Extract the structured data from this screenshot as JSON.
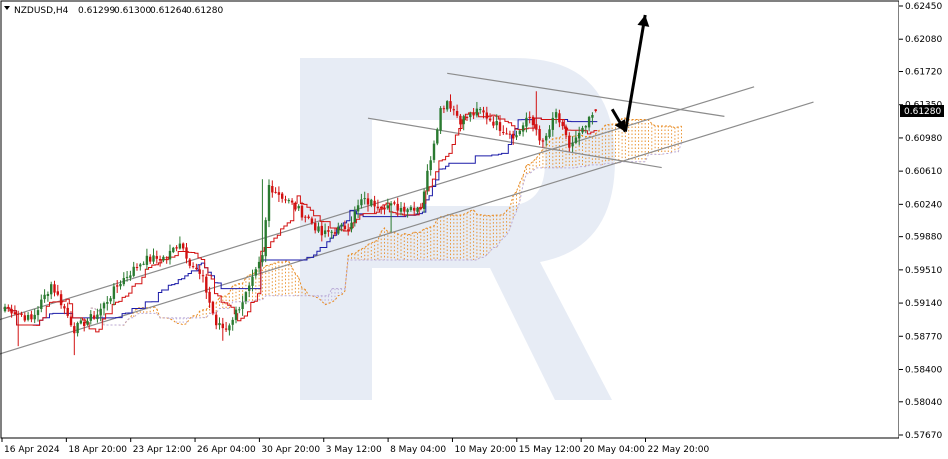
{
  "header": {
    "symbol": "NZDUSD,H4",
    "open": "0.61299",
    "high": "0.61300",
    "low": "0.61264",
    "close": "0.61280"
  },
  "colors": {
    "bull": "#2a7a30",
    "bear": "#d21010",
    "tenkan": "#d21010",
    "kijun": "#1a1aa8",
    "cloud_bull": "#e88a20",
    "cloud_bear": "#b9a9d6",
    "channel": "#8c8c8c",
    "arrow": "#000000",
    "watermark": "#dfe6f2",
    "price_tag_bg": "#000000"
  },
  "chart_data": {
    "type": "candlestick",
    "title": "",
    "ylim": [
      0.5767,
      0.6245
    ],
    "y_ticks": [
      "0.62450",
      "0.62080",
      "0.61720",
      "0.61350",
      "0.60980",
      "0.60610",
      "0.60240",
      "0.59880",
      "0.59510",
      "0.59140",
      "0.58770",
      "0.58400",
      "0.58040",
      "0.57670"
    ],
    "x_ticks": [
      "16 Apr 2024",
      "18 Apr 20:00",
      "23 Apr 12:00",
      "26 Apr 04:00",
      "30 Apr 20:00",
      "3 May 12:00",
      "8 May 04:00",
      "10 May 20:00",
      "15 May 12:00",
      "20 May 04:00",
      "22 May 20:00"
    ],
    "last_price": "0.61280",
    "anchors": [
      [
        0,
        0.591
      ],
      [
        8,
        0.5895
      ],
      [
        14,
        0.5935
      ],
      [
        17,
        0.5915
      ],
      [
        21,
        0.5885
      ],
      [
        28,
        0.5902
      ],
      [
        35,
        0.5938
      ],
      [
        42,
        0.5962
      ],
      [
        49,
        0.5965
      ],
      [
        53,
        0.5983
      ],
      [
        56,
        0.596
      ],
      [
        60,
        0.594
      ],
      [
        64,
        0.589
      ],
      [
        67,
        0.5885
      ],
      [
        74,
        0.593
      ],
      [
        78,
        0.5965
      ],
      [
        80,
        0.6045
      ],
      [
        85,
        0.603
      ],
      [
        92,
        0.6008
      ],
      [
        96,
        0.599
      ],
      [
        104,
        0.6
      ],
      [
        108,
        0.6028
      ],
      [
        112,
        0.6025
      ],
      [
        120,
        0.602
      ],
      [
        126,
        0.6022
      ],
      [
        130,
        0.6095
      ],
      [
        132,
        0.613
      ],
      [
        134,
        0.614
      ],
      [
        138,
        0.6118
      ],
      [
        144,
        0.6128
      ],
      [
        150,
        0.611
      ],
      [
        155,
        0.61
      ],
      [
        158,
        0.612
      ],
      [
        161,
        0.6108
      ],
      [
        163,
        0.609
      ],
      [
        167,
        0.6125
      ],
      [
        171,
        0.6088
      ],
      [
        175,
        0.6105
      ],
      [
        179,
        0.6128
      ]
    ],
    "channel_lines": [
      {
        "name": "",
        "points": [
          [
            -18,
            0.5877
          ],
          [
            227,
            0.6155
          ]
        ]
      },
      {
        "name": "",
        "points": [
          [
            -30,
            0.5825
          ],
          [
            245,
            0.6138
          ]
        ]
      },
      {
        "name": "",
        "points": [
          [
            110,
            0.612
          ],
          [
            199,
            0.6065
          ]
        ]
      },
      {
        "name": "",
        "points": [
          [
            134,
            0.617
          ],
          [
            218,
            0.6122
          ]
        ]
      }
    ],
    "forecast_arrows": [
      {
        "from": [
          184,
          0.613
        ],
        "to": [
          188,
          0.6105
        ]
      },
      {
        "from": [
          188,
          0.6105
        ],
        "to": [
          194,
          0.6235
        ]
      }
    ]
  }
}
